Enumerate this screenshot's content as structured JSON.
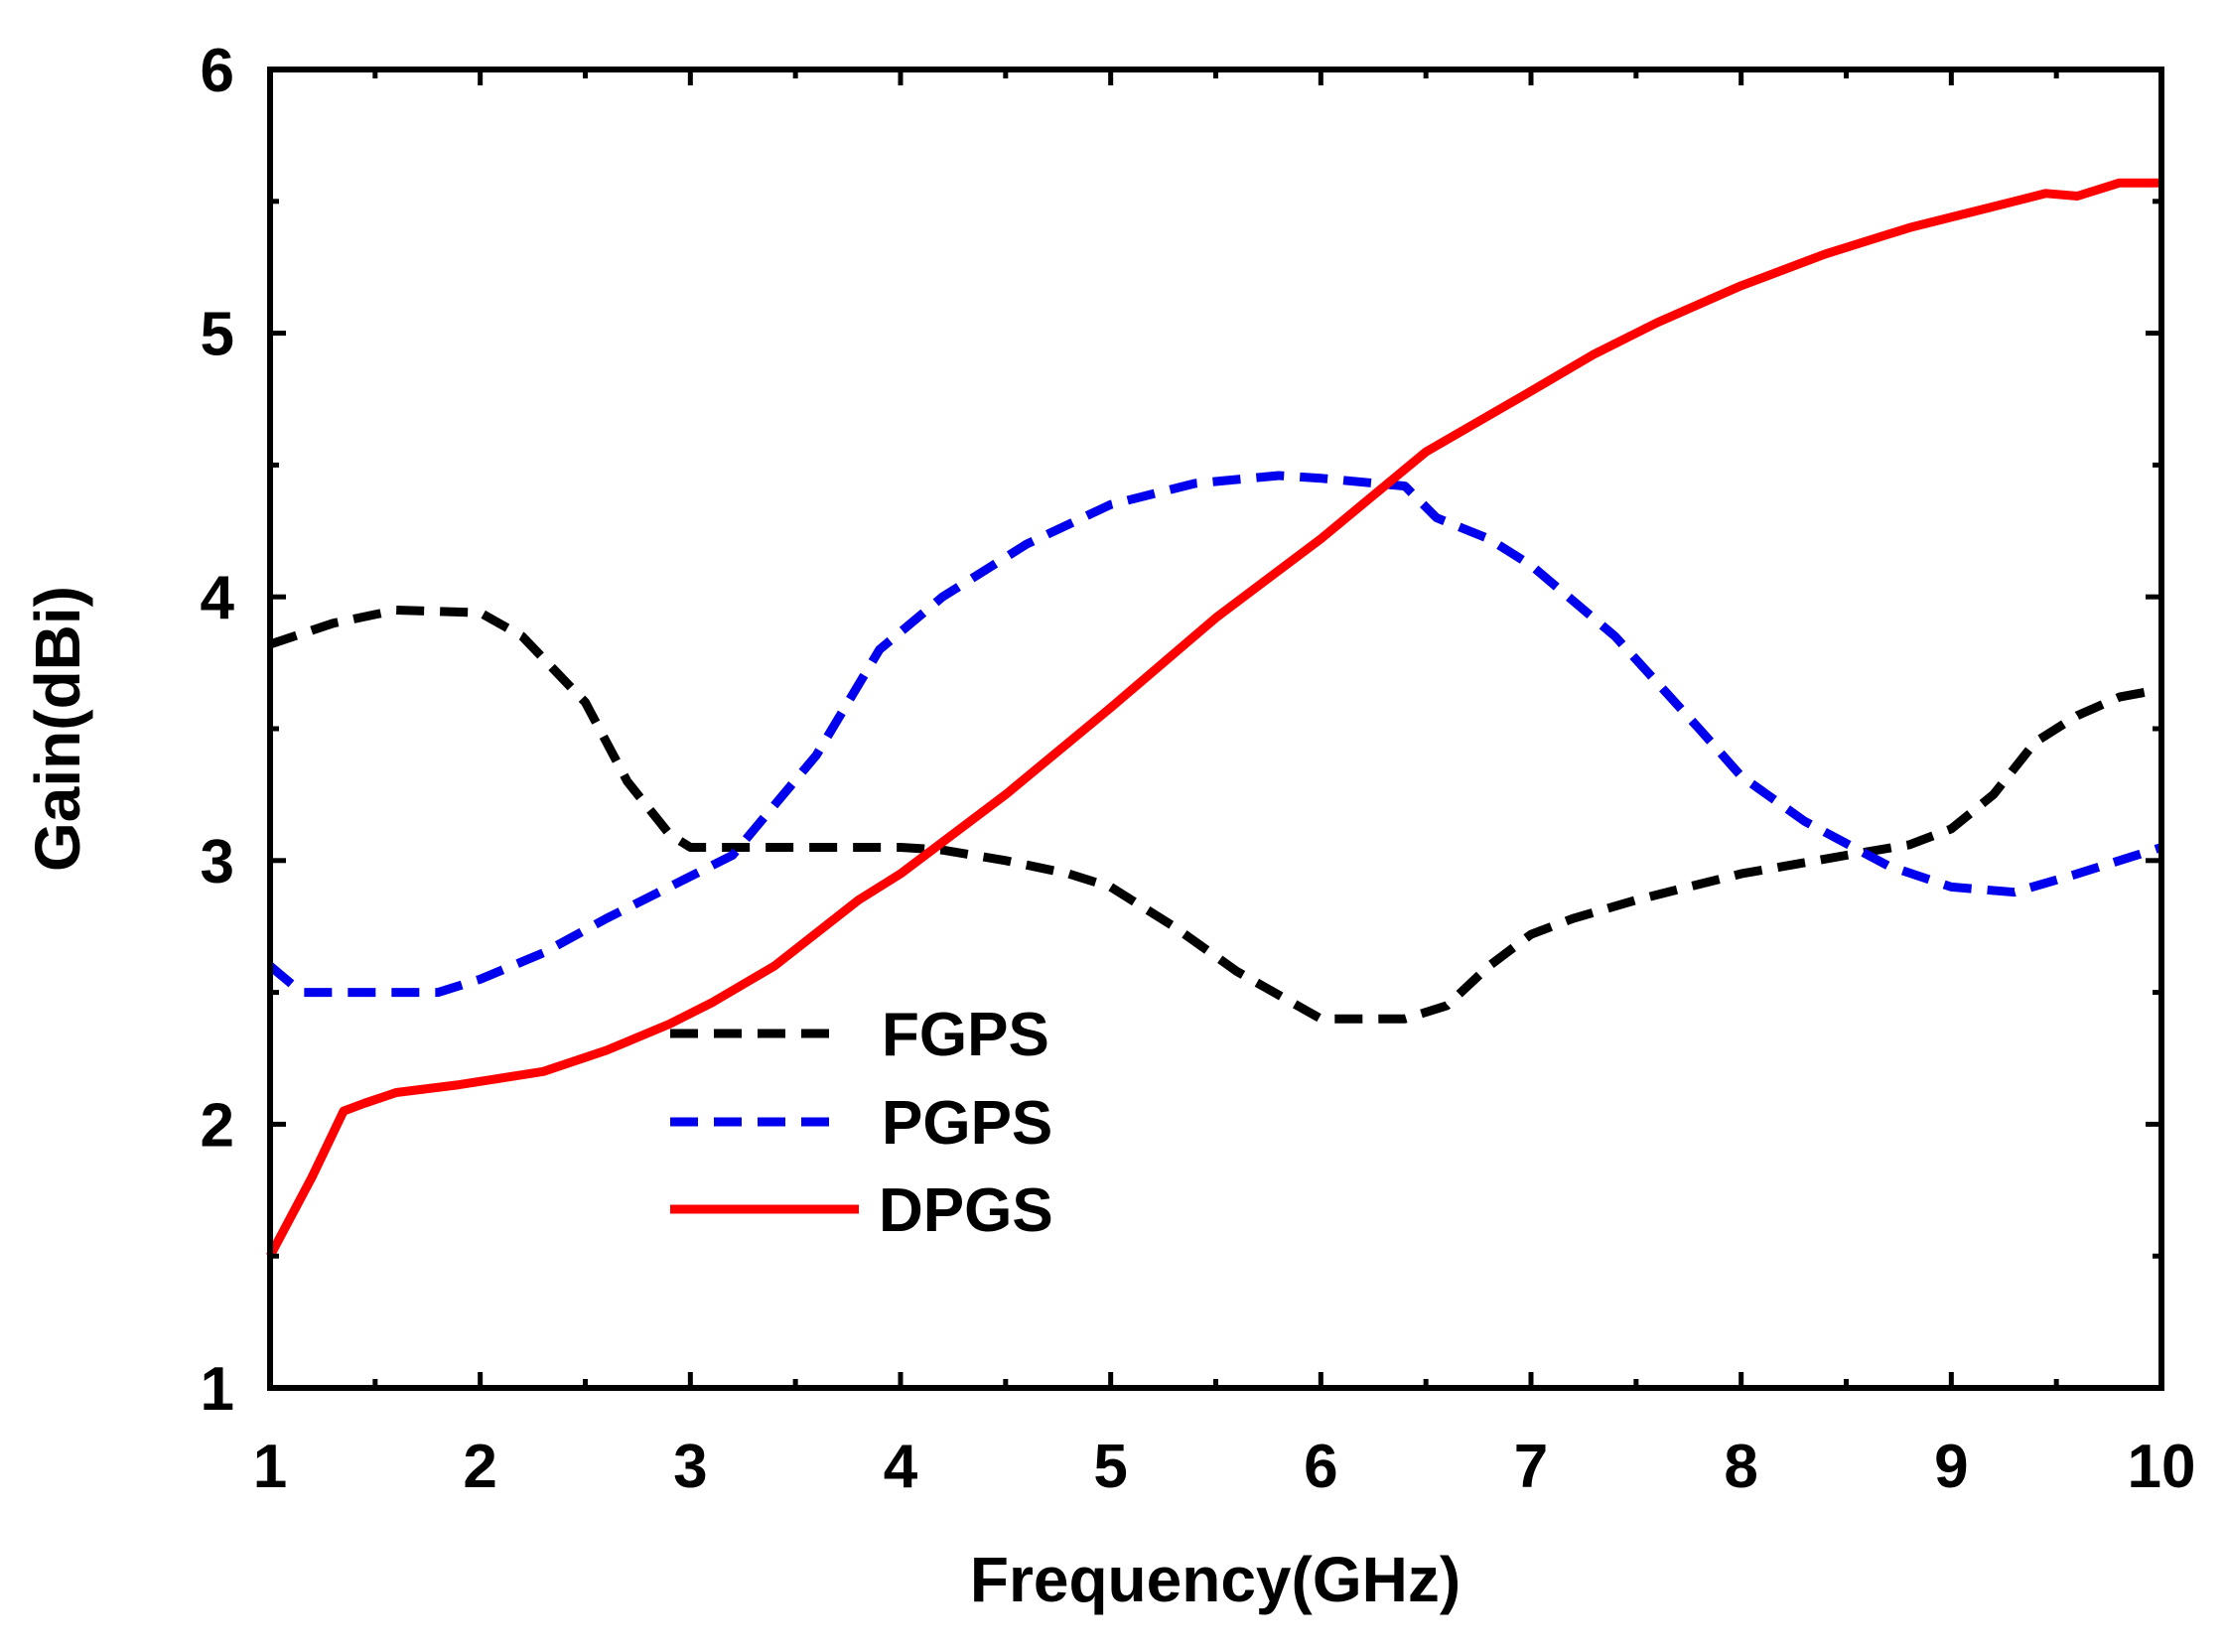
{
  "chart_data": {
    "type": "line",
    "xlabel": "Frequency(GHz)",
    "ylabel": "Gain(dBi)",
    "xlim": [
      1,
      10
    ],
    "ylim": [
      1,
      6
    ],
    "xticks": [
      "1",
      "2",
      "3",
      "4",
      "5",
      "6",
      "7",
      "8",
      "9",
      "10"
    ],
    "yticks": [
      "1",
      "2",
      "3",
      "4",
      "5",
      "6"
    ],
    "grid": false,
    "legend_position": "center-left",
    "series": [
      {
        "name": "FGPS",
        "color": "#000000",
        "style": "dashed",
        "x": [
          1,
          1.3,
          1.6,
          2.0,
          2.2,
          2.5,
          2.7,
          2.9,
          3.0,
          3.2,
          3.5,
          4.0,
          4.2,
          4.5,
          4.8,
          5.0,
          5.3,
          5.6,
          6.0,
          6.4,
          6.6,
          6.8,
          7.0,
          7.2,
          7.5,
          8.0,
          8.5,
          8.8,
          9.0,
          9.2,
          9.4,
          9.6,
          9.8,
          10.0
        ],
        "y": [
          3.82,
          3.9,
          3.95,
          3.94,
          3.85,
          3.6,
          3.3,
          3.1,
          3.05,
          3.05,
          3.05,
          3.05,
          3.04,
          3.0,
          2.95,
          2.9,
          2.75,
          2.58,
          2.4,
          2.4,
          2.45,
          2.6,
          2.72,
          2.78,
          2.85,
          2.95,
          3.02,
          3.06,
          3.12,
          3.25,
          3.45,
          3.55,
          3.62,
          3.65
        ]
      },
      {
        "name": "PGPS",
        "color": "#0000ee",
        "style": "dashed",
        "x": [
          1,
          1.15,
          1.4,
          1.8,
          2.0,
          2.3,
          2.6,
          2.9,
          3.2,
          3.6,
          3.9,
          4.2,
          4.6,
          5.0,
          5.4,
          5.8,
          6.0,
          6.4,
          6.55,
          6.8,
          7.0,
          7.4,
          7.8,
          8.0,
          8.3,
          8.7,
          9.0,
          9.3,
          9.6,
          10.0
        ],
        "y": [
          2.6,
          2.5,
          2.5,
          2.5,
          2.55,
          2.65,
          2.78,
          2.9,
          3.02,
          3.4,
          3.8,
          4.0,
          4.2,
          4.35,
          4.43,
          4.46,
          4.45,
          4.42,
          4.3,
          4.22,
          4.12,
          3.85,
          3.5,
          3.32,
          3.15,
          2.98,
          2.9,
          2.88,
          2.95,
          3.05
        ]
      },
      {
        "name": "DPGS",
        "color": "#ff0000",
        "style": "solid",
        "x": [
          1,
          1.2,
          1.35,
          1.45,
          1.6,
          1.9,
          2.3,
          2.6,
          2.9,
          3.1,
          3.4,
          3.8,
          4.0,
          4.5,
          5.0,
          5.5,
          6.0,
          6.5,
          7.0,
          7.3,
          7.6,
          8.0,
          8.4,
          8.8,
          9.2,
          9.45,
          9.6,
          9.8,
          10.0
        ],
        "y": [
          1.5,
          1.8,
          2.05,
          2.08,
          2.12,
          2.15,
          2.2,
          2.28,
          2.38,
          2.46,
          2.6,
          2.85,
          2.95,
          3.25,
          3.58,
          3.92,
          4.22,
          4.55,
          4.78,
          4.92,
          5.04,
          5.18,
          5.3,
          5.4,
          5.48,
          5.53,
          5.52,
          5.57,
          5.57
        ]
      }
    ]
  }
}
